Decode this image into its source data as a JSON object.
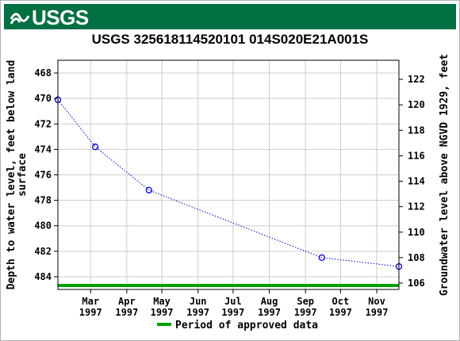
{
  "banner": {
    "logo_text": "USGS",
    "color": "#006f41"
  },
  "chart_data": {
    "type": "line",
    "title": "USGS 325618114520101 014S020E21A001S",
    "ylabel_left": "Depth to water level, feet below land surface",
    "ylabel_left_lines": [
      "Depth to water level, feet below land",
      "surface"
    ],
    "ylabel_right": "Groundwater level above NGVD 1929, feet",
    "ylim_left": [
      467,
      485
    ],
    "ylim_right": [
      105.5,
      123.5
    ],
    "yticks_left": [
      468,
      470,
      472,
      474,
      476,
      478,
      480,
      482,
      484
    ],
    "yticks_right": [
      106,
      108,
      110,
      112,
      114,
      116,
      118,
      120,
      122
    ],
    "xlim": [
      "1997-02-01",
      "1997-11-20"
    ],
    "xticks": [
      {
        "date": "1997-03-01",
        "month": "Mar",
        "year": "1997"
      },
      {
        "date": "1997-04-01",
        "month": "Apr",
        "year": "1997"
      },
      {
        "date": "1997-05-01",
        "month": "May",
        "year": "1997"
      },
      {
        "date": "1997-06-01",
        "month": "Jun",
        "year": "1997"
      },
      {
        "date": "1997-07-01",
        "month": "Jul",
        "year": "1997"
      },
      {
        "date": "1997-08-01",
        "month": "Aug",
        "year": "1997"
      },
      {
        "date": "1997-09-01",
        "month": "Sep",
        "year": "1997"
      },
      {
        "date": "1997-10-01",
        "month": "Oct",
        "year": "1997"
      },
      {
        "date": "1997-11-01",
        "month": "Nov",
        "year": "1997"
      }
    ],
    "grid": true,
    "series": [
      {
        "color": "#0000cc",
        "points": [
          {
            "x": "1997-02-01",
            "y": 470.1
          },
          {
            "x": "1997-03-05",
            "y": 473.8
          },
          {
            "x": "1997-04-20",
            "y": 477.2
          },
          {
            "x": "1997-09-15",
            "y": 482.5
          },
          {
            "x": "1997-11-20",
            "y": 483.2
          }
        ]
      }
    ],
    "approved_period": {
      "start": "1997-02-01",
      "end": "1997-11-20",
      "color": "#00a000"
    },
    "legend": {
      "label": "Period of approved data",
      "placement": "bottom-center"
    }
  }
}
